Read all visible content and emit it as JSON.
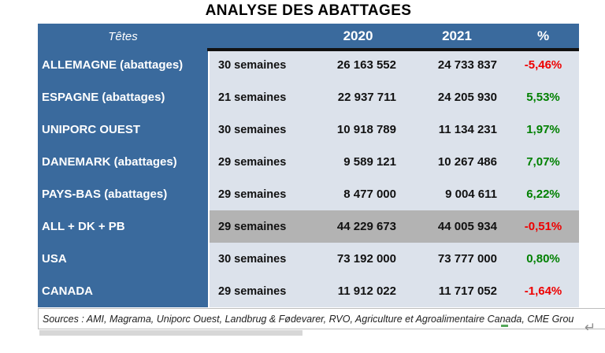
{
  "page": {
    "title": "ANALYSE DES ABATTAGES"
  },
  "colors": {
    "header_blue": "#3A6A9D",
    "data_bg": "#DCE2EB",
    "highlight_gray": "#B3B3B3",
    "negative_red": "#EE0000",
    "positive_green": "#008000"
  },
  "table": {
    "header": {
      "col_tetes": "Têtes",
      "col_weeks": "",
      "col_2020": "2020",
      "col_2021": "2021",
      "col_pct": "%"
    },
    "rows": [
      {
        "name": "ALLEMAGNE (abattages)",
        "weeks": "30 semaines",
        "y2020": "26 163 552",
        "y2021": "24 733 837",
        "pct": "-5,46%",
        "trend": "negative",
        "highlight": false
      },
      {
        "name": "ESPAGNE (abattages)",
        "weeks": "21 semaines",
        "y2020": "22 937 711",
        "y2021": "24 205 930",
        "pct": "5,53%",
        "trend": "positive",
        "highlight": false
      },
      {
        "name": "UNIPORC OUEST",
        "weeks": "30 semaines",
        "y2020": "10 918 789",
        "y2021": "11 134 231",
        "pct": "1,97%",
        "trend": "positive",
        "highlight": false
      },
      {
        "name": "DANEMARK (abattages)",
        "weeks": "29 semaines",
        "y2020": "9 589 121",
        "y2021": "10 267 486",
        "pct": "7,07%",
        "trend": "positive",
        "highlight": false
      },
      {
        "name": "PAYS-BAS (abattages)",
        "weeks": "29 semaines",
        "y2020": "8 477 000",
        "y2021": "9 004 611",
        "pct": "6,22%",
        "trend": "positive",
        "highlight": false
      },
      {
        "name": "ALL + DK + PB",
        "weeks": "29 semaines",
        "y2020": "44 229 673",
        "y2021": "44 005 934",
        "pct": "-0,51%",
        "trend": "negative",
        "highlight": true
      },
      {
        "name": "USA",
        "weeks": "30 semaines",
        "y2020": "73 192 000",
        "y2021": "73 777 000",
        "pct": "0,80%",
        "trend": "positive",
        "highlight": false
      },
      {
        "name": "CANADA",
        "weeks": "29 semaines",
        "y2020": "11 912 022",
        "y2021": "11 717 052",
        "pct": "-1,64%",
        "trend": "negative",
        "highlight": false
      }
    ]
  },
  "footer": {
    "sources": "Sources : AMI, Magrama, Uniporc Ouest, Landbrug & Fødevarer, RVO, Agriculture et Agroalimentaire Canada, CME Grou"
  },
  "symbols": {
    "return_mark": "↵"
  },
  "chart_data": {
    "type": "table",
    "title": "ANALYSE DES ABATTAGES",
    "columns": [
      "Têtes",
      "semaines",
      "2020",
      "2021",
      "%"
    ],
    "rows": [
      [
        "ALLEMAGNE (abattages)",
        "30 semaines",
        26163552,
        24733837,
        "-5,46%"
      ],
      [
        "ESPAGNE (abattages)",
        "21 semaines",
        22937711,
        24205930,
        "5,53%"
      ],
      [
        "UNIPORC OUEST",
        "30 semaines",
        10918789,
        11134231,
        "1,97%"
      ],
      [
        "DANEMARK (abattages)",
        "29 semaines",
        9589121,
        10267486,
        "7,07%"
      ],
      [
        "PAYS-BAS (abattages)",
        "29 semaines",
        8477000,
        9004611,
        "6,22%"
      ],
      [
        "ALL + DK + PB",
        "29 semaines",
        44229673,
        44005934,
        "-0,51%"
      ],
      [
        "USA",
        "30 semaines",
        73192000,
        73777000,
        "0,80%"
      ],
      [
        "CANADA",
        "29 semaines",
        11912022,
        11717052,
        "-1,64%"
      ]
    ]
  }
}
